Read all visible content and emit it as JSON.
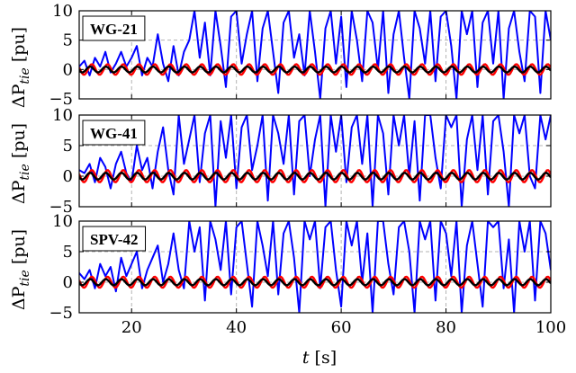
{
  "figure": {
    "xlabel_symbol": "t",
    "xlabel_unit": "[s]",
    "ylabel_symbol": "ΔP",
    "ylabel_subscript": "tie",
    "ylabel_unit": "[pu]"
  },
  "colors": {
    "blue": "#0000ff",
    "red": "#ff0000",
    "black": "#000000",
    "grid": "#b3b3b3"
  },
  "chart_data": [
    {
      "type": "line",
      "panel_label": "WG-21",
      "xlim": [
        10,
        100
      ],
      "ylim": [
        -5,
        10
      ],
      "yticks": [
        -5,
        0,
        5,
        10
      ],
      "xticks": [
        20,
        40,
        60,
        80,
        100
      ],
      "xtick_labels_shown": false,
      "grid": true,
      "series": [
        {
          "color": "blue",
          "x_start": 10,
          "dx": 1,
          "values": [
            0.5,
            1.5,
            -1,
            2,
            0.5,
            3,
            -0.5,
            1,
            3,
            0.5,
            2,
            4,
            -1,
            2,
            0.5,
            6,
            1,
            -2,
            4,
            -1,
            3,
            5,
            10,
            2,
            8,
            -1,
            10,
            4,
            -3,
            9,
            10,
            1,
            6,
            10,
            -2,
            7,
            10,
            3,
            -4,
            8,
            10,
            2,
            6,
            -1,
            10,
            3,
            -5,
            7,
            10,
            1,
            9,
            -3,
            10,
            5,
            -2,
            10,
            8,
            0,
            10,
            -4,
            6,
            10,
            2,
            -5,
            10,
            7,
            1,
            10,
            -2,
            9,
            10,
            4,
            -5,
            10,
            6,
            10,
            -3,
            8,
            10,
            1,
            10,
            -5,
            7,
            10,
            3,
            -2,
            10,
            9,
            -4,
            10,
            5
          ]
        },
        {
          "color": "red",
          "amplitude": 0.9,
          "period": 3.0
        },
        {
          "color": "black",
          "amplitude": 0.5,
          "period": 3.0
        }
      ]
    },
    {
      "type": "line",
      "panel_label": "WG-41",
      "xlim": [
        10,
        100
      ],
      "ylim": [
        -5,
        10
      ],
      "yticks": [
        -5,
        0,
        5,
        10
      ],
      "xticks": [
        20,
        40,
        60,
        80,
        100
      ],
      "xtick_labels_shown": false,
      "grid": true,
      "series": [
        {
          "color": "blue",
          "x_start": 10,
          "dx": 1,
          "values": [
            1,
            0.5,
            2,
            -1,
            3,
            1.5,
            -2,
            2,
            4,
            0.5,
            -1,
            5,
            1,
            3,
            -2,
            4,
            8,
            1,
            -3,
            10,
            2,
            6,
            10,
            -1,
            7,
            10,
            -5,
            9,
            3,
            10,
            -2,
            8,
            10,
            1,
            5,
            10,
            -4,
            10,
            7,
            2,
            10,
            -3,
            9,
            10,
            0,
            6,
            10,
            -5,
            10,
            4,
            10,
            -1,
            8,
            10,
            2,
            10,
            -5,
            10,
            7,
            -3,
            10,
            5,
            10,
            0,
            9,
            -4,
            10,
            10,
            3,
            -2,
            10,
            8,
            10,
            -5,
            6,
            10,
            1,
            10,
            -3,
            9,
            10,
            4,
            -5,
            10,
            7,
            10,
            0,
            -2,
            10,
            6,
            10
          ]
        },
        {
          "color": "red",
          "amplitude": 1.0,
          "period": 3.0
        },
        {
          "color": "black",
          "amplitude": 0.55,
          "period": 3.0
        }
      ]
    },
    {
      "type": "line",
      "panel_label": "SPV-42",
      "xlim": [
        10,
        100
      ],
      "ylim": [
        -5,
        10
      ],
      "yticks": [
        -5,
        0,
        5,
        10
      ],
      "xticks": [
        20,
        40,
        60,
        80,
        100
      ],
      "xtick_labels_shown": true,
      "grid": true,
      "series": [
        {
          "color": "blue",
          "x_start": 10,
          "dx": 1,
          "values": [
            1.5,
            0.5,
            2,
            -1,
            3,
            1,
            2.5,
            -1.5,
            4,
            1,
            3,
            5,
            -1,
            2,
            4,
            6,
            0,
            3,
            8,
            2,
            -1,
            10,
            5,
            9,
            -3,
            10,
            7,
            2,
            10,
            -2,
            9,
            10,
            3,
            -4,
            10,
            6,
            1,
            10,
            -2,
            8,
            10,
            4,
            -5,
            10,
            7,
            10,
            -1,
            9,
            10,
            2,
            -4,
            10,
            6,
            10,
            0,
            8,
            -5,
            10,
            10,
            3,
            -2,
            9,
            10,
            5,
            -5,
            10,
            7,
            10,
            -3,
            10,
            8,
            1,
            10,
            -5,
            6,
            10,
            3,
            -4,
            10,
            9,
            10,
            -1,
            7,
            -5,
            10,
            5,
            10,
            -3,
            10,
            8,
            2
          ]
        },
        {
          "color": "red",
          "amplitude": 0.9,
          "period": 3.0
        },
        {
          "color": "black",
          "amplitude": 0.5,
          "period": 3.0
        }
      ]
    }
  ]
}
